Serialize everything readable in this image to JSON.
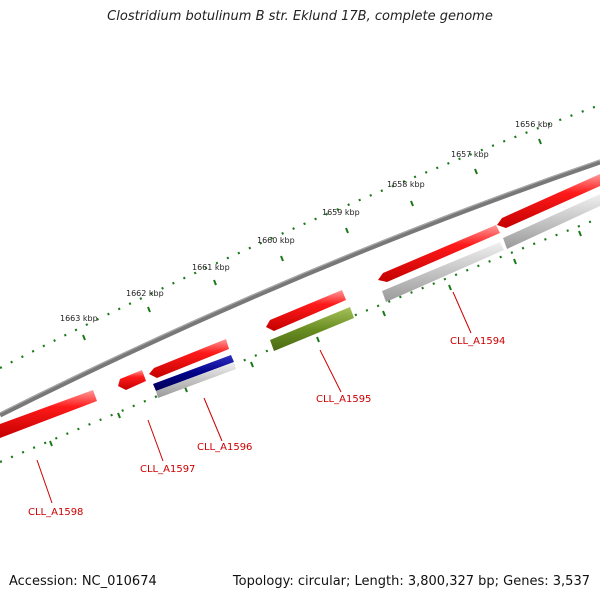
{
  "title": "Clostridium botulinum B str. Eklund 17B, complete genome",
  "footer": {
    "accession": "Accession: NC_010674",
    "topology": "Topology: circular; Length: 3,800,327 bp; Genes: 3,537"
  },
  "map": {
    "scale_unit": "kbp",
    "tick_labels": [
      "1656 kbp",
      "1657 kbp",
      "1658 kbp",
      "1659 kbp",
      "1660 kbp",
      "1661 kbp",
      "1662 kbp",
      "1663 kbp"
    ],
    "genes": [
      {
        "label": "CLL_A1594",
        "strand": "forward",
        "color": "#ff0000",
        "secondary_color": "#c0c0c0"
      },
      {
        "label": "CLL_A1595",
        "strand": "forward",
        "color": "#ff0000",
        "secondary_color": "#6b8e23"
      },
      {
        "label": "CLL_A1596",
        "strand": "forward",
        "color": "#ff0000",
        "secondary_color": "#00008b"
      },
      {
        "label": "CLL_A1597",
        "strand": "reverse",
        "color": "#ff0000"
      },
      {
        "label": "CLL_A1598",
        "strand": "forward",
        "color": "#ff0000"
      }
    ],
    "colors": {
      "backbone": "#7a7a7a",
      "ticks": "#1a7a1a",
      "gene_label": "#cc0000"
    }
  }
}
